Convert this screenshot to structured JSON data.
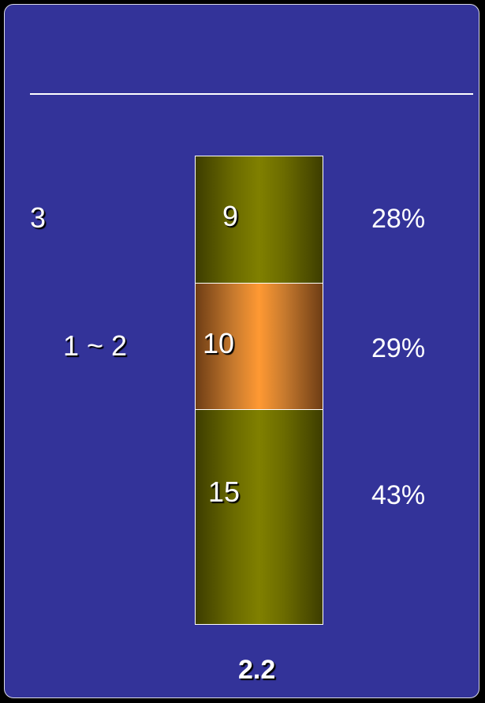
{
  "left_labels": [
    "3",
    "1 ~ 2"
  ],
  "segments": [
    {
      "value": "9",
      "percent": "28%",
      "color": "#808000"
    },
    {
      "value": "10",
      "percent": "29%",
      "color": "#ff9933"
    },
    {
      "value": "15",
      "percent": "43%",
      "color": "#808000"
    }
  ],
  "total": "2.2",
  "colors": {
    "background": "#333399",
    "divider": "#ffffff"
  }
}
